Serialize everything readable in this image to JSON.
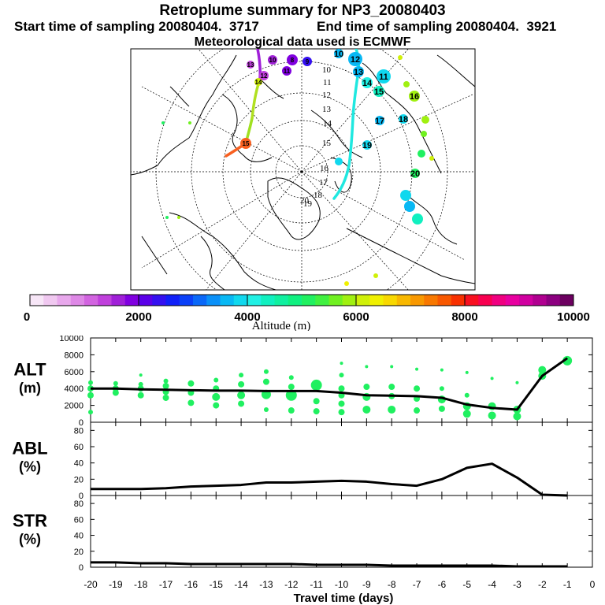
{
  "header": {
    "title": "Retroplume summary for NP3_20080403",
    "start_time": "Start time of sampling 20080404.  3717",
    "end_time": "End time of sampling 20080404.  3921",
    "met_data": "Meteorological data used is ECMWF"
  },
  "map": {
    "day_labels": [
      "10",
      "11",
      "12",
      "13",
      "14",
      "15",
      "16",
      "17",
      "18",
      "19",
      "20"
    ],
    "clusters_left": [
      "8",
      "9",
      "10",
      "11",
      "12",
      "13",
      "14",
      "15"
    ],
    "clusters_right": [
      "10",
      "11",
      "12",
      "13",
      "14",
      "15",
      "16",
      "17",
      "18",
      "19",
      "20"
    ]
  },
  "colorbar": {
    "ticks": [
      "0",
      "2000",
      "4000",
      "6000",
      "8000",
      "10000"
    ],
    "label": "Altitude (m)",
    "colors": [
      "#f7e6f7",
      "#f0c8f0",
      "#e8a8ec",
      "#de88e6",
      "#d264e0",
      "#c040dc",
      "#a020d8",
      "#8000e0",
      "#5a00e8",
      "#3410f0",
      "#1020f8",
      "#0a40f8",
      "#0a68f8",
      "#0a90f8",
      "#08b8f4",
      "#10d8ee",
      "#20f0e4",
      "#10f0c0",
      "#10f0a0",
      "#10f080",
      "#20f060",
      "#40f040",
      "#70f020",
      "#a0f010",
      "#d0f008",
      "#f0f000",
      "#f8d800",
      "#f8b800",
      "#f89800",
      "#f87800",
      "#f85800",
      "#f83000",
      "#f81020",
      "#f80050",
      "#f00080",
      "#e800a0",
      "#d000a0",
      "#b00090",
      "#8c0080",
      "#6c0060"
    ]
  },
  "chart_data": [
    {
      "type": "line",
      "name": "ALT",
      "ylabel": "ALT\n(m)",
      "ylim": [
        0,
        10000
      ],
      "yticks": [
        0,
        2000,
        4000,
        6000,
        8000,
        10000
      ],
      "x": [
        -20,
        -19,
        -18,
        -17,
        -16,
        -15,
        -14,
        -13,
        -12,
        -11,
        -10,
        -9,
        -8,
        -7,
        -6,
        -5,
        -4,
        -3,
        -2,
        -1
      ],
      "values": [
        4000,
        4000,
        3900,
        3850,
        3800,
        3750,
        3750,
        3700,
        3700,
        3700,
        3500,
        3200,
        3150,
        3100,
        2900,
        2100,
        1700,
        1500,
        5500,
        7600
      ],
      "scatter_points": [
        {
          "x": -20,
          "y": 4700,
          "s": 3
        },
        {
          "x": -20,
          "y": 4000,
          "s": 4
        },
        {
          "x": -20,
          "y": 3200,
          "s": 4
        },
        {
          "x": -20,
          "y": 1200,
          "s": 3
        },
        {
          "x": -19,
          "y": 4600,
          "s": 3
        },
        {
          "x": -19,
          "y": 4000,
          "s": 4
        },
        {
          "x": -19,
          "y": 3500,
          "s": 4
        },
        {
          "x": -18,
          "y": 5600,
          "s": 2
        },
        {
          "x": -18,
          "y": 4500,
          "s": 3
        },
        {
          "x": -18,
          "y": 4000,
          "s": 4
        },
        {
          "x": -18,
          "y": 3200,
          "s": 4
        },
        {
          "x": -17,
          "y": 4900,
          "s": 3
        },
        {
          "x": -17,
          "y": 4300,
          "s": 4
        },
        {
          "x": -17,
          "y": 3600,
          "s": 4
        },
        {
          "x": -17,
          "y": 2900,
          "s": 4
        },
        {
          "x": -16,
          "y": 4600,
          "s": 4
        },
        {
          "x": -16,
          "y": 3500,
          "s": 4
        },
        {
          "x": -16,
          "y": 2300,
          "s": 4
        },
        {
          "x": -15,
          "y": 5000,
          "s": 3
        },
        {
          "x": -15,
          "y": 4000,
          "s": 4
        },
        {
          "x": -15,
          "y": 3000,
          "s": 5
        },
        {
          "x": -15,
          "y": 2000,
          "s": 4
        },
        {
          "x": -14,
          "y": 5600,
          "s": 3
        },
        {
          "x": -14,
          "y": 4500,
          "s": 4
        },
        {
          "x": -14,
          "y": 3200,
          "s": 5
        },
        {
          "x": -14,
          "y": 2200,
          "s": 4
        },
        {
          "x": -13,
          "y": 6000,
          "s": 3
        },
        {
          "x": -13,
          "y": 4800,
          "s": 4
        },
        {
          "x": -13,
          "y": 3300,
          "s": 6
        },
        {
          "x": -13,
          "y": 1500,
          "s": 3
        },
        {
          "x": -12,
          "y": 5300,
          "s": 3
        },
        {
          "x": -12,
          "y": 4200,
          "s": 4
        },
        {
          "x": -12,
          "y": 3200,
          "s": 7
        },
        {
          "x": -12,
          "y": 1400,
          "s": 4
        },
        {
          "x": -11,
          "y": 4400,
          "s": 7
        },
        {
          "x": -11,
          "y": 2500,
          "s": 4
        },
        {
          "x": -11,
          "y": 1300,
          "s": 4
        },
        {
          "x": -10,
          "y": 7000,
          "s": 2
        },
        {
          "x": -10,
          "y": 5600,
          "s": 3
        },
        {
          "x": -10,
          "y": 4000,
          "s": 4
        },
        {
          "x": -10,
          "y": 3200,
          "s": 4
        },
        {
          "x": -10,
          "y": 2200,
          "s": 4
        },
        {
          "x": -10,
          "y": 1200,
          "s": 4
        },
        {
          "x": -9,
          "y": 6600,
          "s": 2
        },
        {
          "x": -9,
          "y": 4200,
          "s": 4
        },
        {
          "x": -9,
          "y": 3000,
          "s": 5
        },
        {
          "x": -9,
          "y": 1500,
          "s": 5
        },
        {
          "x": -8,
          "y": 6600,
          "s": 2
        },
        {
          "x": -8,
          "y": 4200,
          "s": 4
        },
        {
          "x": -8,
          "y": 3100,
          "s": 4
        },
        {
          "x": -8,
          "y": 1500,
          "s": 5
        },
        {
          "x": -7,
          "y": 6300,
          "s": 2
        },
        {
          "x": -7,
          "y": 4000,
          "s": 4
        },
        {
          "x": -7,
          "y": 2800,
          "s": 4
        },
        {
          "x": -7,
          "y": 1400,
          "s": 4
        },
        {
          "x": -6,
          "y": 6200,
          "s": 2
        },
        {
          "x": -6,
          "y": 4000,
          "s": 3
        },
        {
          "x": -6,
          "y": 2700,
          "s": 5
        },
        {
          "x": -6,
          "y": 1600,
          "s": 4
        },
        {
          "x": -5,
          "y": 5900,
          "s": 2
        },
        {
          "x": -5,
          "y": 3200,
          "s": 3
        },
        {
          "x": -5,
          "y": 1900,
          "s": 5
        },
        {
          "x": -5,
          "y": 1000,
          "s": 5
        },
        {
          "x": -4,
          "y": 5200,
          "s": 2
        },
        {
          "x": -4,
          "y": 1900,
          "s": 5
        },
        {
          "x": -4,
          "y": 800,
          "s": 5
        },
        {
          "x": -3,
          "y": 4700,
          "s": 2
        },
        {
          "x": -3,
          "y": 1500,
          "s": 5
        },
        {
          "x": -3,
          "y": 700,
          "s": 5
        },
        {
          "x": -2,
          "y": 6200,
          "s": 5
        },
        {
          "x": -2,
          "y": 5500,
          "s": 5
        },
        {
          "x": -1,
          "y": 7300,
          "s": 6
        }
      ]
    },
    {
      "type": "line",
      "name": "ABL",
      "ylabel": "ABL\n(%)",
      "ylim": [
        0,
        90
      ],
      "yticks": [
        0,
        20,
        40,
        60,
        80
      ],
      "x": [
        -20,
        -19,
        -18,
        -17,
        -16,
        -15,
        -14,
        -13,
        -12,
        -11,
        -10,
        -9,
        -8,
        -7,
        -6,
        -5,
        -4,
        -3,
        -2,
        -1
      ],
      "values": [
        8,
        8,
        8,
        9,
        11,
        12,
        13,
        16,
        16,
        17,
        18,
        17,
        14,
        12,
        20,
        34,
        39,
        22,
        1,
        0
      ]
    },
    {
      "type": "line",
      "name": "STR",
      "ylabel": "STR\n(%)",
      "ylim": [
        0,
        90
      ],
      "yticks": [
        0,
        20,
        40,
        60,
        80
      ],
      "x": [
        -20,
        -19,
        -18,
        -17,
        -16,
        -15,
        -14,
        -13,
        -12,
        -11,
        -10,
        -9,
        -8,
        -7,
        -6,
        -5,
        -4,
        -3,
        -2,
        -1
      ],
      "values": [
        6,
        6,
        5,
        5,
        4,
        4,
        4,
        4,
        4,
        3,
        3,
        3,
        2,
        2,
        2,
        2,
        2,
        1,
        1,
        1
      ]
    }
  ],
  "xaxis": {
    "ticks": [
      "-20",
      "-19",
      "-18",
      "-17",
      "-16",
      "-15",
      "-14",
      "-13",
      "-12",
      "-11",
      "-10",
      "-9",
      "-8",
      "-7",
      "-6",
      "-5",
      "-4",
      "-3",
      "-2",
      "-1",
      "0"
    ],
    "label": "Travel time (days)"
  }
}
